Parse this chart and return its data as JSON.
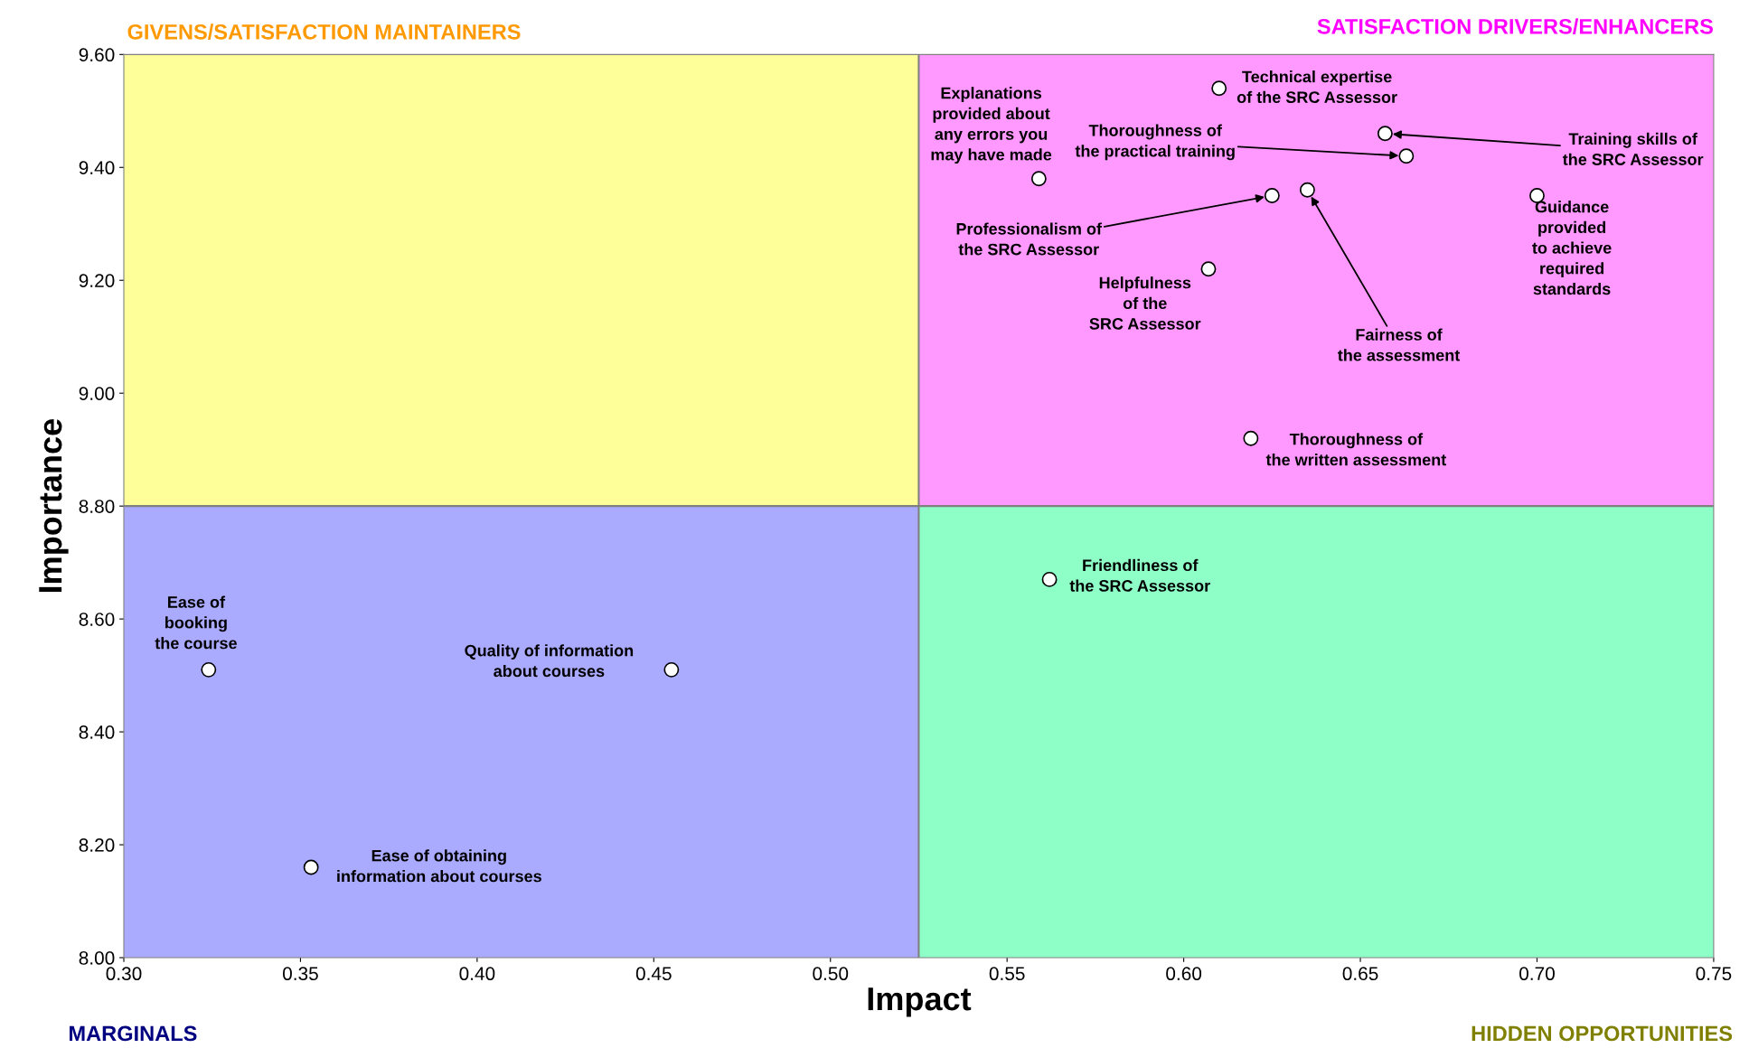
{
  "chart_data": {
    "type": "scatter",
    "xlabel": "Impact",
    "ylabel": "Importance",
    "xlim": [
      0.3,
      0.75
    ],
    "xticks": [
      {
        "value": 0.3,
        "label": "0.30"
      },
      {
        "value": 0.35,
        "label": "0.35"
      },
      {
        "value": 0.4,
        "label": "0.40"
      },
      {
        "value": 0.45,
        "label": "0.45"
      },
      {
        "value": 0.5,
        "label": "0.50"
      },
      {
        "value": 0.55,
        "label": "0.55"
      },
      {
        "value": 0.6,
        "label": "0.60"
      },
      {
        "value": 0.65,
        "label": "0.65"
      },
      {
        "value": 0.7,
        "label": "0.70"
      },
      {
        "value": 0.75,
        "label": "0.75"
      }
    ],
    "ylim": [
      8.0,
      9.6
    ],
    "yticks": [
      {
        "value": 8.0,
        "label": "8.00"
      },
      {
        "value": 8.2,
        "label": "8.20"
      },
      {
        "value": 8.4,
        "label": "8.40"
      },
      {
        "value": 8.6,
        "label": "8.60"
      },
      {
        "value": 8.8,
        "label": "8.80"
      },
      {
        "value": 9.0,
        "label": "9.00"
      },
      {
        "value": 9.2,
        "label": "9.20"
      },
      {
        "value": 9.4,
        "label": "9.40"
      },
      {
        "value": 9.6,
        "label": "9.60"
      }
    ],
    "grid": false,
    "legend": false,
    "marker": "circle",
    "series": [
      {
        "name": "Explanations\nprovided about\nany errors you\nmay have made",
        "color": "#ffffff",
        "x": [
          0.559
        ],
        "values": [
          9.38
        ]
      },
      {
        "name": "Technical expertise\nof the SRC Assessor",
        "color": "#ffffff",
        "x": [
          0.61
        ],
        "values": [
          9.54
        ]
      },
      {
        "name": "Training skills of\nthe SRC Assessor",
        "color": "#ffffff",
        "x": [
          0.657
        ],
        "values": [
          9.46
        ]
      },
      {
        "name": "Thoroughness of\nthe practical training",
        "color": "#ffffff",
        "x": [
          0.663
        ],
        "values": [
          9.42
        ]
      },
      {
        "name": "Professionalism of\nthe SRC Assessor",
        "color": "#ffffff",
        "x": [
          0.625
        ],
        "values": [
          9.35
        ]
      },
      {
        "name": "Fairness of\nthe assessment",
        "color": "#ffffff",
        "x": [
          0.635
        ],
        "values": [
          9.36
        ]
      },
      {
        "name": "Guidance\nprovided\nto achieve\nrequired\nstandards",
        "color": "#ffffff",
        "x": [
          0.7
        ],
        "values": [
          9.35
        ]
      },
      {
        "name": "Helpfulness\nof the\nSRC Assessor",
        "color": "#ffffff",
        "x": [
          0.607
        ],
        "values": [
          9.22
        ]
      },
      {
        "name": "Thoroughness of\nthe written assessment",
        "color": "#ffffff",
        "x": [
          0.619
        ],
        "values": [
          8.92
        ]
      },
      {
        "name": "Friendliness of\nthe SRC Assessor",
        "color": "#ffffff",
        "x": [
          0.562
        ],
        "values": [
          8.67
        ]
      },
      {
        "name": "Ease of\nbooking\nthe course",
        "color": "#ffffff",
        "x": [
          0.324
        ],
        "values": [
          8.51
        ]
      },
      {
        "name": "Quality of information\nabout courses",
        "color": "#ffffff",
        "x": [
          0.455
        ],
        "values": [
          8.51
        ]
      },
      {
        "name": "Ease of obtaining\ninformation about courses",
        "color": "#ffffff",
        "x": [
          0.353
        ],
        "values": [
          8.16
        ]
      }
    ],
    "annotations": [
      "GIVENS/SATISFACTION MAINTAINERS",
      "SATISFACTION DRIVERS/ENHANCERS",
      "MARGINALS",
      "HIDDEN OPPORTUNITIES"
    ],
    "ref_lines": [
      {
        "axis": "x",
        "value": 0.525,
        "color": "#808080"
      },
      {
        "axis": "y",
        "value": 8.8,
        "color": "#808080"
      }
    ],
    "bands": [
      {
        "axis": "x",
        "from": 0.3,
        "to": 0.525,
        "color": "#ffff99"
      },
      {
        "axis": "x",
        "from": 0.525,
        "to": 0.75,
        "color": "#ff99ff"
      },
      {
        "axis": "x",
        "from": 0.3,
        "to": 0.525,
        "color": "#aaaaff"
      },
      {
        "axis": "x",
        "from": 0.525,
        "to": 0.75,
        "color": "#8fffc8"
      }
    ]
  }
}
